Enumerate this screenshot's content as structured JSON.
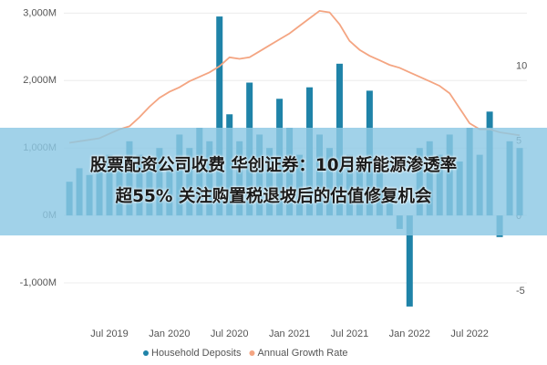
{
  "chart_data": {
    "type": "bar_line",
    "categories": [
      null,
      null,
      null,
      null,
      "Jul 2019",
      null,
      null,
      null,
      null,
      null,
      "Jan 2020",
      null,
      null,
      null,
      null,
      null,
      "Jul 2020",
      null,
      null,
      null,
      null,
      null,
      "Jan 2021",
      null,
      null,
      null,
      null,
      null,
      "Jul 2021",
      null,
      null,
      null,
      null,
      null,
      "Jan 2022",
      null,
      null,
      null,
      null,
      null,
      "Jul 2022",
      null,
      null,
      null,
      null,
      null
    ],
    "series": [
      {
        "name": "Household Deposits",
        "color": "#1f83a8",
        "type": "bar",
        "values": [
          500,
          700,
          600,
          800,
          900,
          700,
          1100,
          900,
          800,
          1000,
          700,
          1200,
          1000,
          1300,
          1100,
          2950,
          1500,
          1100,
          1970,
          1200,
          1000,
          1730,
          1300,
          900,
          1900,
          1200,
          1000,
          2250,
          900,
          800,
          1850,
          700,
          300,
          -200,
          -1350,
          1000,
          1100,
          900,
          1200,
          800,
          1300,
          900,
          1540,
          -320,
          1100,
          1000
        ]
      },
      {
        "name": "Annual Growth Rate",
        "color": "#f4a582",
        "type": "line",
        "axis": "y2",
        "values": [
          4.9,
          5.0,
          5.1,
          5.2,
          5.5,
          5.8,
          6.0,
          6.6,
          7.3,
          7.9,
          8.3,
          8.6,
          9.0,
          9.3,
          9.6,
          10.0,
          10.6,
          10.5,
          10.6,
          11.0,
          11.4,
          11.8,
          12.2,
          12.7,
          13.2,
          13.7,
          13.6,
          12.8,
          11.7,
          11.1,
          10.7,
          10.4,
          10.1,
          9.9,
          9.6,
          9.3,
          9.0,
          8.7,
          8.2,
          7.2,
          6.2,
          5.8,
          5.8,
          5.6,
          5.5,
          5.4
        ]
      }
    ],
    "ylim": [
      -1500,
      3100
    ],
    "yticks": [
      {
        "value": -1000,
        "label": "-1,000M"
      },
      {
        "value": 0,
        "label": "0M"
      },
      {
        "value": 1000,
        "label": "1,000M"
      },
      {
        "value": 2000,
        "label": "2,000M"
      },
      {
        "value": 3000,
        "label": "3,000M"
      }
    ],
    "y2lim": [
      -6.7,
      14
    ],
    "y2ticks": [
      -5,
      0,
      5,
      10
    ],
    "grid": true,
    "legend": "bottom"
  },
  "banner": {
    "lines": [
      "股票配资公司收费 华创证券：10月新能源渗透率",
      "超55% 关注购置税退坡后的估值修复机会"
    ]
  }
}
